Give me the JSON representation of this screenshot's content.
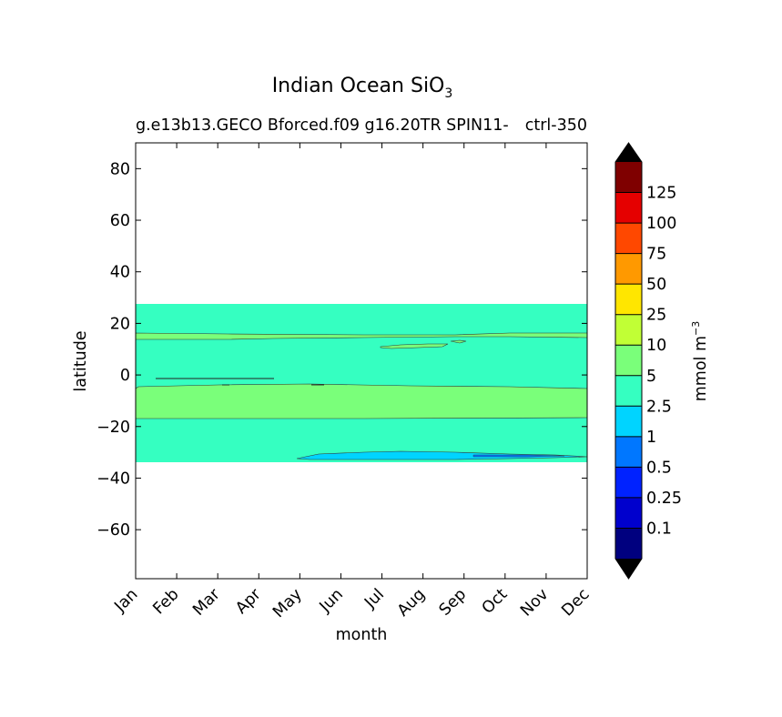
{
  "chart_data": {
    "type": "heatmap",
    "title_main": "Indian Ocean SiO",
    "title_sub": "3",
    "subtitle_left": "g.e13b13.GECO Bforced.f09 g16.20TR SPIN11-",
    "subtitle_right": "ctrl-350",
    "xlabel": "month",
    "ylabel": "latitude",
    "x_categories": [
      "Jan",
      "Feb",
      "Mar",
      "Apr",
      "May",
      "Jun",
      "Jul",
      "Aug",
      "Sep",
      "Oct",
      "Nov",
      "Dec"
    ],
    "ylim": [
      -79,
      90
    ],
    "y_ticks": [
      80,
      60,
      40,
      20,
      0,
      -20,
      -40,
      -60
    ],
    "y_tick_labels": [
      "80",
      "60",
      "40",
      "20",
      "0",
      "−20",
      "−40",
      "−60"
    ],
    "data_lat_range": [
      -34,
      27.5
    ],
    "colorbar": {
      "label": "mmol m",
      "label_exponent": "−3",
      "levels": [
        "0.1",
        "0.25",
        "0.5",
        "1",
        "2.5",
        "5",
        "10",
        "25",
        "50",
        "75",
        "100",
        "125"
      ],
      "colors": [
        "#00007f",
        "#0000cd",
        "#0022ff",
        "#0077ff",
        "#00d4ff",
        "#35ffc1",
        "#7aff7a",
        "#c1ff35",
        "#ffe600",
        "#ff9900",
        "#ff4800",
        "#e50000",
        "#7f0000"
      ],
      "extend_low_color": "#000000",
      "extend_high_color": "#000000"
    },
    "regions": [
      {
        "name": "background",
        "value_range": "2.5–5",
        "color": "#35ffc1"
      },
      {
        "name": "northern band",
        "value_range": "5–10",
        "lat_range": [
          14,
          16
        ],
        "color": "#7aff7a"
      },
      {
        "name": "equatorial band",
        "value_range": "5–10",
        "lat_range": [
          -17,
          -4
        ],
        "color": "#7aff7a"
      },
      {
        "name": "southern patch",
        "value_range": "1–2.5",
        "lat_range": [
          -33,
          -30
        ],
        "months": [
          "Jun",
          "Dec"
        ],
        "color": "#00d4ff"
      }
    ]
  }
}
